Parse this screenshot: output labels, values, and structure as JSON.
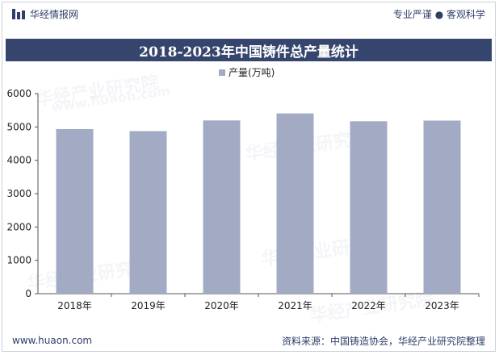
{
  "header": {
    "brand_name": "华经情报网",
    "tagline": "专业严谨 ● 客观科学"
  },
  "footer": {
    "site_url": "www.huaon.com",
    "source": "资料来源：中国铸造协会，华经产业研究院整理"
  },
  "watermark": {
    "text": "华经产业研究院",
    "url": "www.huaon.com"
  },
  "colors": {
    "bar": "#a3abc4",
    "title_bg": "#35456d",
    "text": "#2f3f6a"
  },
  "chart_data": {
    "type": "bar",
    "title": "2018-2023年中国铸件总产量统计",
    "categories": [
      "2018年",
      "2019年",
      "2020年",
      "2021年",
      "2022年",
      "2023年"
    ],
    "series": [
      {
        "name": "产量(万吨)",
        "values": [
          4935,
          4875,
          5195,
          5405,
          5170,
          5190
        ]
      }
    ],
    "yticks": [
      "0",
      "1000",
      "2000",
      "3000",
      "4000",
      "5000",
      "6000"
    ],
    "ylim": [
      0,
      6000
    ],
    "xlabel": "",
    "ylabel": "",
    "legend": "top-center",
    "grid": false
  }
}
